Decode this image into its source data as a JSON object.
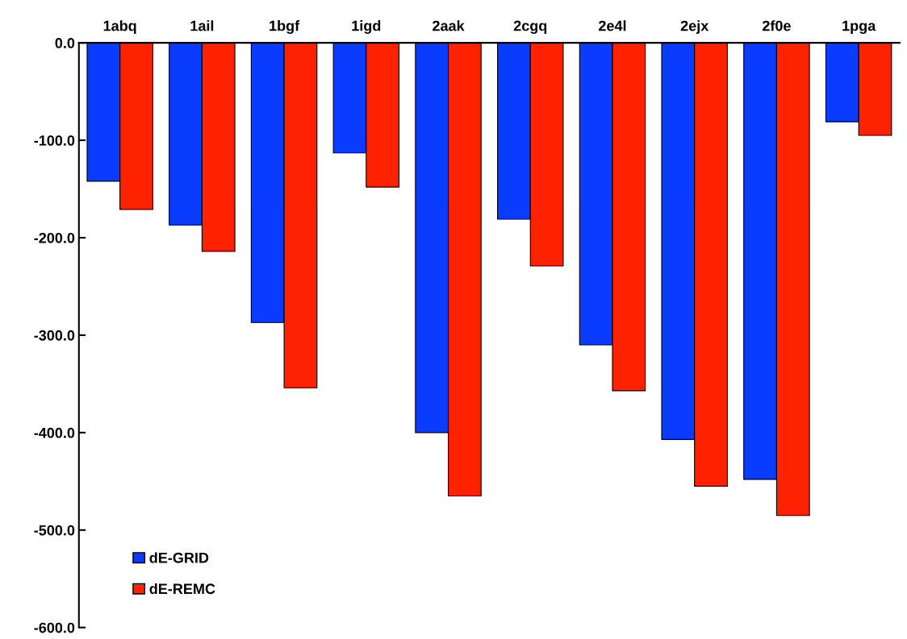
{
  "chart_data": {
    "type": "bar",
    "categories": [
      "1abq",
      "1ail",
      "1bgf",
      "1igd",
      "2aak",
      "2cgq",
      "2e4l",
      "2ejx",
      "2f0e",
      "1pga"
    ],
    "series": [
      {
        "name": "dE-GRID",
        "color": "#0a3cff",
        "values": [
          -142,
          -187,
          -287,
          -113,
          -400,
          -181,
          -310,
          -407,
          -448,
          -81
        ]
      },
      {
        "name": "dE-REMC",
        "color": "#ff2200",
        "values": [
          -171,
          -214,
          -354,
          -148,
          -465,
          -229,
          -357,
          -455,
          -485,
          -95
        ]
      }
    ],
    "ylim": [
      -600,
      0
    ],
    "yticks": [
      {
        "value": -600,
        "label": "-600.0"
      },
      {
        "value": -500,
        "label": "-500.0"
      },
      {
        "value": -400,
        "label": "-400.0"
      },
      {
        "value": -300,
        "label": "-300.0"
      },
      {
        "value": -200,
        "label": "-200.0"
      },
      {
        "value": -100,
        "label": "-100.0"
      },
      {
        "value": 0,
        "label": "0.0"
      }
    ],
    "grid": false,
    "legend": "bottom left"
  }
}
